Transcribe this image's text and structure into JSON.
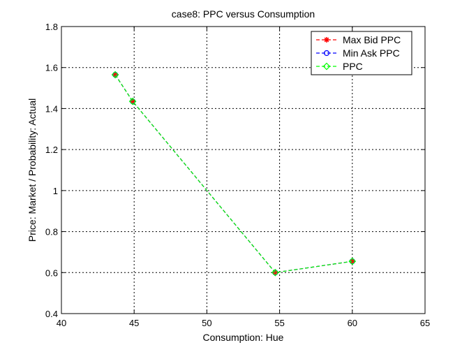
{
  "chart_data": {
    "type": "line",
    "title": "case8: PPC versus Consumption",
    "xlabel": "Consumption: Hue",
    "ylabel": "Price: Market / Probability: Actual",
    "xlim": [
      40,
      65
    ],
    "ylim": [
      0.4,
      1.8
    ],
    "x_ticks": [
      40,
      45,
      50,
      55,
      60,
      65
    ],
    "y_ticks": [
      0.4,
      0.6,
      0.8,
      1,
      1.2,
      1.4,
      1.6,
      1.8
    ],
    "x_tick_labels": [
      "40",
      "45",
      "50",
      "55",
      "60",
      "65"
    ],
    "y_tick_labels": [
      "0.4",
      "0.6",
      "0.8",
      "1",
      "1.2",
      "1.4",
      "1.6",
      "1.8"
    ],
    "grid": true,
    "legend_position": "top-right",
    "series": [
      {
        "name": "Max Bid PPC",
        "color": "#ff0000",
        "marker": "star",
        "line_style": "dashed",
        "x": [
          43.7,
          44.9,
          54.7,
          60.0
        ],
        "y": [
          1.565,
          1.435,
          0.6,
          0.655
        ]
      },
      {
        "name": "Min Ask PPC",
        "color": "#0000ff",
        "marker": "circle",
        "line_style": "dashed",
        "x": [
          43.7,
          44.9,
          54.7,
          60.0
        ],
        "y": [
          1.565,
          1.435,
          0.6,
          0.655
        ]
      },
      {
        "name": "PPC",
        "color": "#00ff00",
        "marker": "diamond",
        "line_style": "dashed",
        "x": [
          43.7,
          44.9,
          54.7,
          60.0
        ],
        "y": [
          1.565,
          1.435,
          0.6,
          0.655
        ]
      }
    ]
  }
}
